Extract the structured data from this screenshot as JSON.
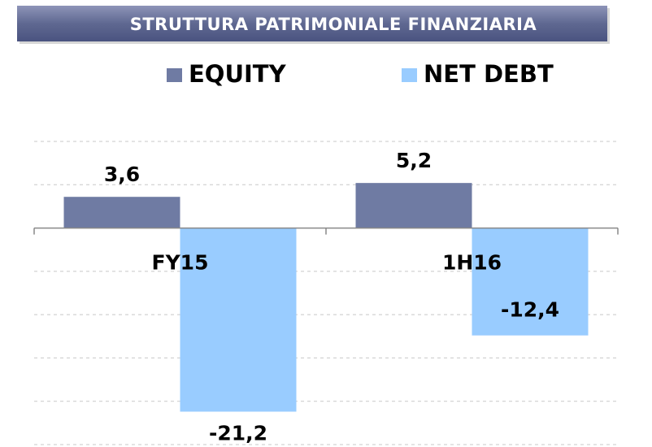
{
  "chart_data": {
    "type": "bar",
    "title": "STRUTTURA PATRIMONIALE FINANZIARIA",
    "categories": [
      "FY15",
      "1H16"
    ],
    "series": [
      {
        "name": "EQUITY",
        "color": "#6f7ba3",
        "values": [
          3.6,
          5.2
        ],
        "value_labels": [
          "3,6",
          "5,2"
        ]
      },
      {
        "name": "NET DEBT",
        "color": "#99ccff",
        "values": [
          -21.2,
          -12.4
        ],
        "value_labels": [
          "-21,2",
          "-12,4"
        ]
      }
    ],
    "ylim": [
      -25,
      10
    ],
    "yticks": [
      -25,
      -20,
      -15,
      -10,
      -5,
      0,
      5,
      10
    ],
    "grid": true,
    "legend": "top"
  }
}
